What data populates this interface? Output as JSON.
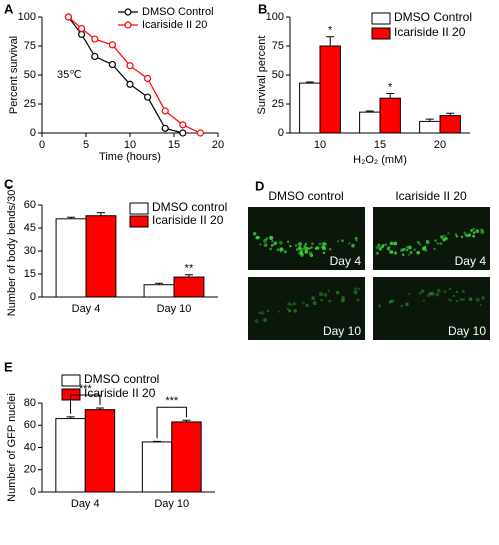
{
  "chart_data": [
    {
      "type": "line",
      "label": "A",
      "xlabel": "Time (hours)",
      "ylabel": "Percent survival",
      "annotations": [
        "35℃"
      ],
      "xlim": [
        0,
        20
      ],
      "xticks": [
        0,
        5,
        10,
        15,
        20
      ],
      "ylim": [
        0,
        100
      ],
      "yticks": [
        0,
        25,
        50,
        75,
        100
      ],
      "series": [
        {
          "name": "DMSO Control",
          "color": "#000000",
          "x": [
            3,
            4.5,
            6,
            8,
            10,
            12,
            14,
            16
          ],
          "values": [
            100,
            85,
            66,
            59,
            42,
            31,
            4,
            0
          ]
        },
        {
          "name": "Icariside II 20",
          "color": "#ff0000",
          "x": [
            3,
            4.5,
            6,
            8,
            10,
            12,
            14,
            16,
            18
          ],
          "values": [
            100,
            90,
            81,
            76,
            58,
            47,
            19,
            7,
            0
          ]
        }
      ]
    },
    {
      "type": "bar",
      "label": "B",
      "xlabel": "H₂O₂ (mM)",
      "ylabel": "Survival percent",
      "annotations": [
        "*",
        "*"
      ],
      "categories": [
        "10",
        "15",
        "20"
      ],
      "ylim": [
        0,
        100
      ],
      "yticks": [
        0,
        25,
        50,
        75,
        100
      ],
      "series": [
        {
          "name": "DMSO Control",
          "color": "#ffffff",
          "values": [
            43,
            18,
            10
          ],
          "errors": [
            1,
            1,
            2
          ]
        },
        {
          "name": "Icariside II 20",
          "color": "#ff0000",
          "values": [
            75,
            30,
            15
          ],
          "errors": [
            8,
            4,
            2
          ]
        }
      ]
    },
    {
      "type": "bar",
      "label": "C",
      "ylabel": "Number of body bends/30″",
      "annotations": [
        "**"
      ],
      "categories": [
        "Day 4",
        "Day 10"
      ],
      "ylim": [
        0,
        60
      ],
      "yticks": [
        0,
        15,
        30,
        45,
        60
      ],
      "series": [
        {
          "name": "DMSO control",
          "color": "#ffffff",
          "values": [
            51,
            8
          ],
          "errors": [
            1,
            1
          ]
        },
        {
          "name": "Icariside II 20",
          "color": "#ff0000",
          "values": [
            53,
            13
          ],
          "errors": [
            2,
            1.5
          ]
        }
      ]
    },
    {
      "type": "bar",
      "label": "E",
      "ylabel": "Number of GFP nuclei",
      "annotations": [
        "***",
        "***"
      ],
      "categories": [
        "Day 4",
        "Day 10"
      ],
      "ylim": [
        0,
        80
      ],
      "yticks": [
        0,
        20,
        40,
        60,
        80
      ],
      "series": [
        {
          "name": "DMSO control",
          "color": "#ffffff",
          "values": [
            66,
            45
          ],
          "errors": [
            1.5,
            0.5
          ]
        },
        {
          "name": "Icariside II 20",
          "color": "#ff0000",
          "values": [
            74,
            63
          ],
          "errors": [
            1.5,
            1.5
          ]
        }
      ]
    }
  ],
  "image_panel": {
    "label": "D",
    "column_titles": [
      "DMSO control",
      "Icariside II 20"
    ],
    "day_labels": [
      "Day 4",
      "Day 4",
      "Day 10",
      "Day 10"
    ]
  }
}
